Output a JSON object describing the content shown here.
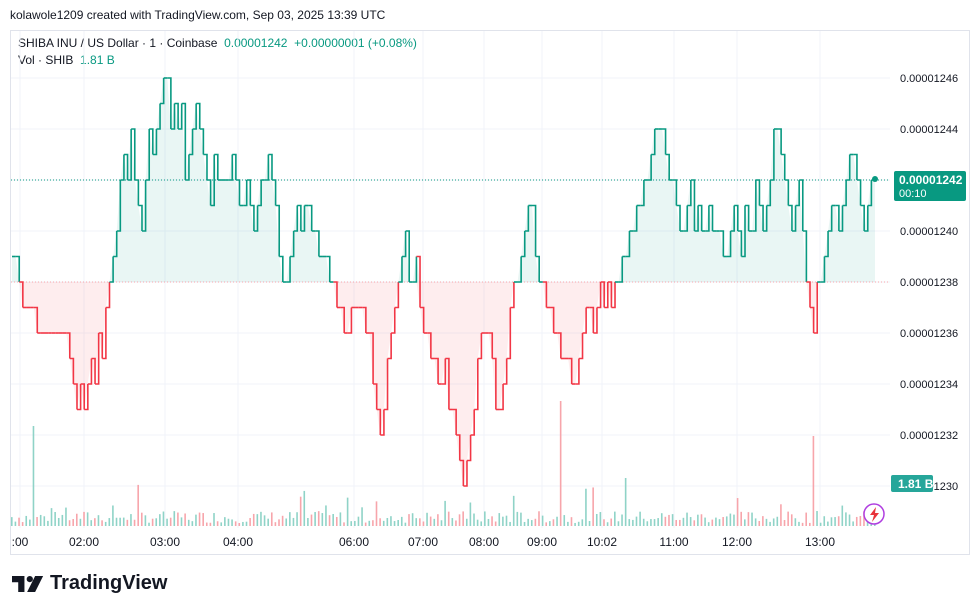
{
  "header": {
    "attribution": "kolawole1209 created with TradingView.com, Sep 03, 2025 13:39 UTC"
  },
  "legend": {
    "symbol": "SHIBA INU / US Dollar · 1 · Coinbase",
    "price": "0.00001242",
    "change": "+0.00000001 (+0.08%)",
    "vol_label": "Vol · SHIB",
    "vol_value": "1.81 B"
  },
  "price_badge": {
    "price": "0.00001242",
    "countdown": "00:10"
  },
  "volume_badge": "1.81 B",
  "brand": {
    "name": "TradingView"
  },
  "colors": {
    "up": "#089981",
    "down": "#f23645",
    "grid": "#f0f3fa",
    "text": "#131722"
  },
  "chart_data": {
    "type": "area",
    "title": "SHIBA INU / US Dollar · 1 · Coinbase",
    "baseline": 1.238e-05,
    "y_ticks": [
      "0.00001246",
      "0.00001244",
      "0.00001242",
      "0.00001240",
      "0.00001238",
      "0.00001236",
      "0.00001234",
      "0.00001232",
      "0.00001230"
    ],
    "ylim": [
      1.23e-05,
      1.246e-05
    ],
    "x_ticks": [
      ":00",
      "02:00",
      "03:00",
      "04:00",
      "06:00",
      "07:00",
      "08:00",
      "09:00",
      "10:02",
      "11:00",
      "12:00",
      "13:00"
    ],
    "grid": true,
    "series": [
      {
        "values": [
          12.39,
          12.39,
          12.38,
          12.37,
          12.37,
          12.37,
          12.37,
          12.36,
          12.36,
          12.36,
          12.36,
          12.36,
          12.36,
          12.36,
          12.36,
          12.36,
          12.35,
          12.34,
          12.33,
          12.34,
          12.33,
          12.34,
          12.35,
          12.34,
          12.36,
          12.35,
          12.37,
          12.38,
          12.39,
          12.4,
          12.42,
          12.43,
          12.42,
          12.44,
          12.42,
          12.41,
          12.4,
          12.42,
          12.44,
          12.43,
          12.44,
          12.45,
          12.46,
          12.46,
          12.44,
          12.45,
          12.44,
          12.45,
          12.42,
          12.43,
          12.44,
          12.45,
          12.44,
          12.43,
          12.42,
          12.41,
          12.43,
          12.42,
          12.42,
          12.42,
          12.42,
          12.43,
          12.42,
          12.41,
          12.41,
          12.42,
          12.41,
          12.4,
          12.41,
          12.42,
          12.42,
          12.43,
          12.42,
          12.41,
          12.39,
          12.38,
          12.38,
          12.39,
          12.4,
          12.41,
          12.4,
          12.41,
          12.41,
          12.4,
          12.4,
          12.39,
          12.39,
          12.39,
          12.38,
          12.38,
          12.37,
          12.37,
          12.36,
          12.36,
          12.37,
          12.37,
          12.37,
          12.37,
          12.36,
          12.36,
          12.34,
          12.33,
          12.32,
          12.33,
          12.35,
          12.36,
          12.37,
          12.38,
          12.39,
          12.4,
          12.38,
          12.38,
          12.39,
          12.37,
          12.36,
          12.36,
          12.35,
          12.35,
          12.34,
          12.34,
          12.35,
          12.33,
          12.33,
          12.32,
          12.31,
          12.3,
          12.31,
          12.32,
          12.33,
          12.35,
          12.36,
          12.36,
          12.36,
          12.35,
          12.33,
          12.33,
          12.34,
          12.35,
          12.37,
          12.38,
          12.38,
          12.39,
          12.4,
          12.41,
          12.41,
          12.39,
          12.38,
          12.38,
          12.37,
          12.37,
          12.36,
          12.36,
          12.35,
          12.35,
          12.35,
          12.34,
          12.34,
          12.35,
          12.36,
          12.37,
          12.37,
          12.36,
          12.37,
          12.38,
          12.37,
          12.38,
          12.37,
          12.38,
          12.38,
          12.39,
          12.39,
          12.4,
          12.4,
          12.41,
          12.41,
          12.42,
          12.42,
          12.43,
          12.44,
          12.44,
          12.44,
          12.43,
          12.42,
          12.42,
          12.41,
          12.4,
          12.4,
          12.41,
          12.42,
          12.4,
          12.41,
          12.4,
          12.4,
          12.41,
          12.4,
          12.4,
          12.4,
          12.39,
          12.39,
          12.4,
          12.41,
          12.4,
          12.39,
          12.41,
          12.4,
          12.4,
          12.42,
          12.41,
          12.4,
          12.41,
          12.42,
          12.44,
          12.44,
          12.43,
          12.42,
          12.41,
          12.4,
          12.41,
          12.42,
          12.4,
          12.38,
          12.37,
          12.36,
          12.38,
          12.38,
          12.39,
          12.4,
          12.41,
          12.41,
          12.4,
          12.41,
          12.42,
          12.43,
          12.43,
          12.42,
          12.41,
          12.4,
          12.41,
          12.42,
          12.42
        ]
      }
    ],
    "volume": {
      "label": "Vol · SHIB",
      "last": "1.81 B"
    }
  }
}
